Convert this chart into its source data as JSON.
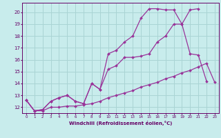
{
  "xlabel": "Windchill (Refroidissement éolien,°C)",
  "bg_color": "#c8ecec",
  "grid_color": "#aad4d4",
  "line_color": "#993399",
  "xlim": [
    -0.5,
    23.5
  ],
  "ylim": [
    11.5,
    20.8
  ],
  "yticks": [
    12,
    13,
    14,
    15,
    16,
    17,
    18,
    19,
    20
  ],
  "xticks": [
    0,
    1,
    2,
    3,
    4,
    5,
    6,
    7,
    8,
    9,
    10,
    11,
    12,
    13,
    14,
    15,
    16,
    17,
    18,
    19,
    20,
    21,
    22,
    23
  ],
  "series": [
    {
      "x": [
        0,
        1,
        2,
        3,
        4,
        5,
        6,
        7,
        8,
        9,
        10,
        11,
        12,
        13,
        14,
        15,
        16,
        17,
        18,
        19,
        20,
        21,
        22,
        23
      ],
      "y": [
        12.6,
        11.7,
        11.7,
        12.0,
        12.0,
        12.1,
        12.1,
        12.2,
        12.3,
        12.5,
        12.8,
        13.0,
        13.2,
        13.4,
        13.7,
        13.9,
        14.1,
        14.4,
        14.6,
        14.9,
        15.1,
        15.4,
        15.7,
        14.1
      ]
    },
    {
      "x": [
        0,
        1,
        2,
        3,
        4,
        5,
        6,
        7,
        8,
        9,
        10,
        11,
        12,
        13,
        14,
        15,
        16,
        17,
        18,
        19,
        20,
        21,
        22,
        23
      ],
      "y": [
        12.6,
        11.7,
        11.8,
        12.5,
        12.8,
        13.0,
        12.5,
        12.3,
        14.0,
        13.5,
        15.2,
        15.5,
        16.2,
        16.2,
        16.3,
        16.5,
        17.5,
        18.0,
        19.0,
        19.0,
        16.5,
        16.4,
        14.2,
        null
      ]
    },
    {
      "x": [
        0,
        1,
        2,
        3,
        4,
        5,
        6,
        7,
        8,
        9,
        10,
        11,
        12,
        13,
        14,
        15,
        16,
        17,
        18,
        19,
        20,
        21,
        22,
        23
      ],
      "y": [
        12.6,
        11.7,
        11.8,
        12.5,
        12.8,
        13.0,
        12.5,
        12.3,
        14.0,
        13.5,
        16.5,
        16.8,
        17.5,
        18.0,
        19.5,
        20.3,
        20.3,
        20.2,
        20.2,
        19.0,
        20.2,
        20.3,
        null,
        null
      ]
    }
  ]
}
